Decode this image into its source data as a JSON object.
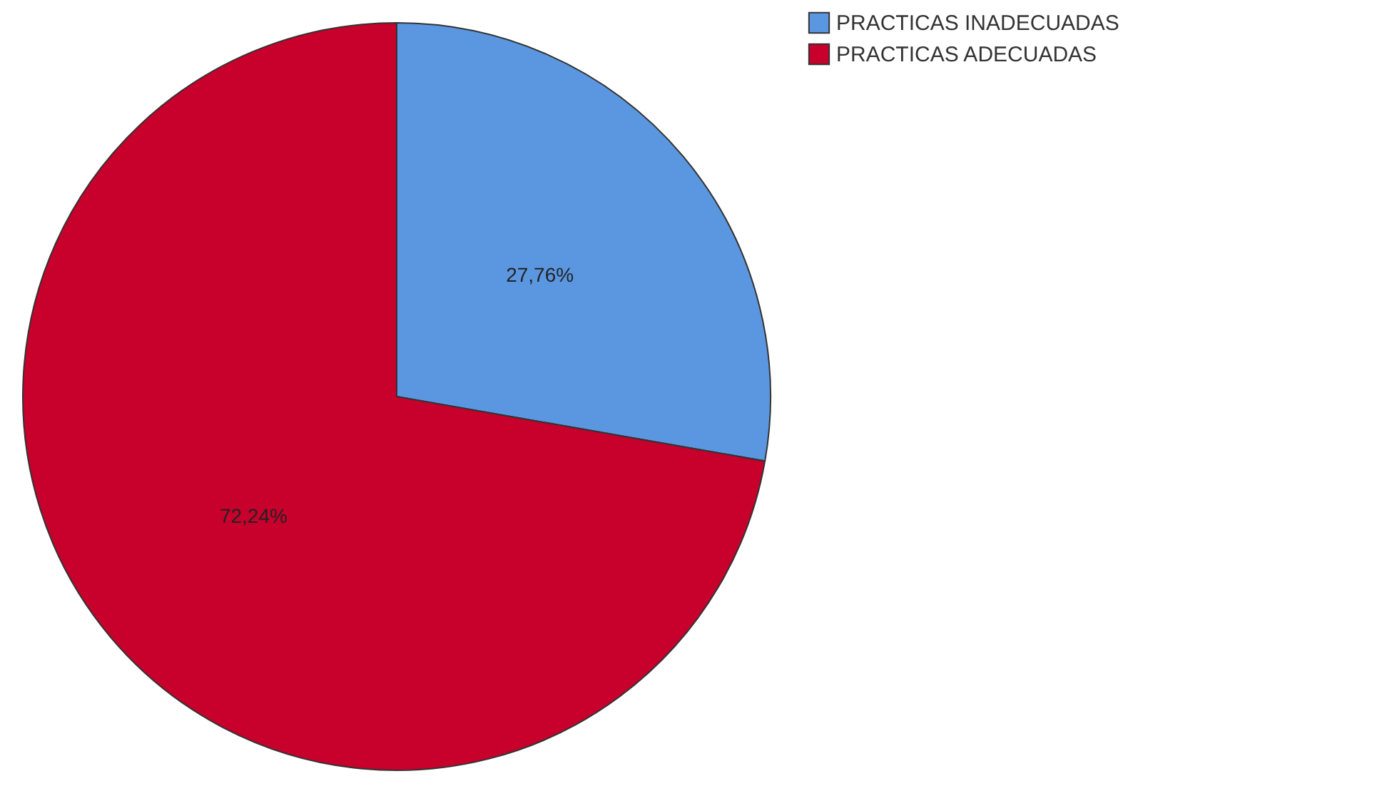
{
  "chart_data": {
    "type": "pie",
    "categories": [
      "PRACTICAS INADECUADAS",
      "PRACTICAS ADECUADAS"
    ],
    "values": [
      27.76,
      72.24
    ],
    "colors": [
      "#5b97e0",
      "#c7002c"
    ],
    "value_labels": [
      "27,76%",
      "72,24%"
    ],
    "legend": "right"
  }
}
